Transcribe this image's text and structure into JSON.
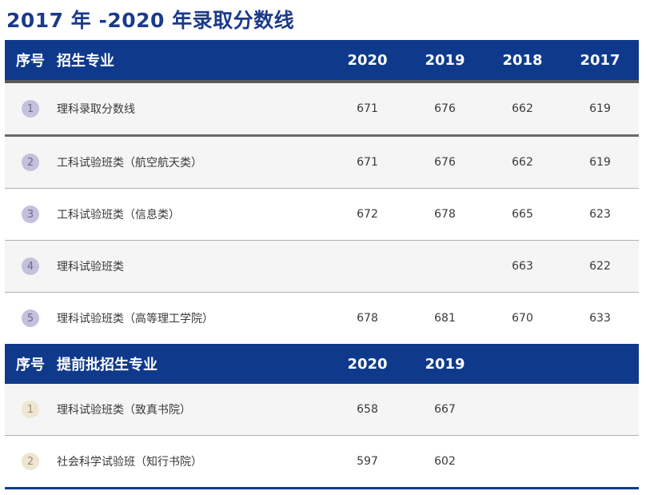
{
  "title": "2017 年 -2020 年录取分数线",
  "colors": {
    "header_bg": "#0f3a8c",
    "title": "#1b3a8a",
    "badge_regular": "#c3c1dc",
    "badge_early": "#efe6d2"
  },
  "section1": {
    "header": {
      "idx": "序号",
      "name": "招生专业",
      "years": [
        "2020",
        "2019",
        "2018",
        "2017"
      ]
    },
    "rows": [
      {
        "idx": "1",
        "name": "理科录取分数线",
        "scores": [
          "671",
          "676",
          "662",
          "619"
        ]
      },
      {
        "idx": "2",
        "name": "工科试验班类（航空航天类）",
        "scores": [
          "671",
          "676",
          "662",
          "619"
        ]
      },
      {
        "idx": "3",
        "name": "工科试验班类（信息类）",
        "scores": [
          "672",
          "678",
          "665",
          "623"
        ]
      },
      {
        "idx": "4",
        "name": "理科试验班类",
        "scores": [
          "",
          "",
          "663",
          "622"
        ]
      },
      {
        "idx": "5",
        "name": "理科试验班类（高等理工学院）",
        "scores": [
          "678",
          "681",
          "670",
          "633"
        ]
      }
    ]
  },
  "section2": {
    "header": {
      "idx": "序号",
      "name": "提前批招生专业",
      "years": [
        "2020",
        "2019"
      ]
    },
    "rows": [
      {
        "idx": "1",
        "name": "理科试验班类（致真书院）",
        "scores": [
          "658",
          "667"
        ]
      },
      {
        "idx": "2",
        "name": "社会科学试验班（知行书院）",
        "scores": [
          "597",
          "602"
        ]
      }
    ]
  }
}
